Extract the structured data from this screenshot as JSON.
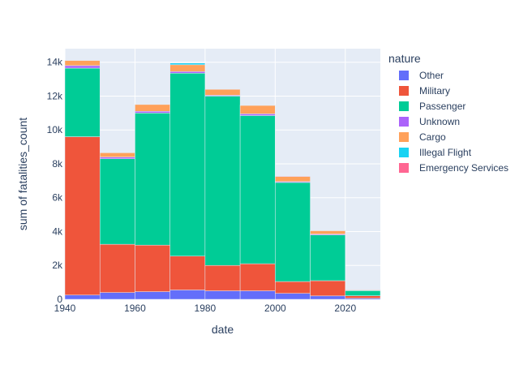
{
  "chart_data": {
    "type": "bar",
    "barmode": "stack",
    "xlabel": "date",
    "ylabel": "sum of fatalities_count",
    "xlim": [
      1940,
      2030
    ],
    "ylim": [
      0,
      14800
    ],
    "x_ticks": [
      1940,
      1960,
      1980,
      2000,
      2020
    ],
    "y_ticks": [
      0,
      2000,
      4000,
      6000,
      8000,
      10000,
      12000,
      14000
    ],
    "y_tick_labels": [
      "0",
      "2k",
      "4k",
      "6k",
      "8k",
      "10k",
      "12k",
      "14k"
    ],
    "bins": [
      [
        1940,
        1950
      ],
      [
        1950,
        1960
      ],
      [
        1960,
        1970
      ],
      [
        1970,
        1980
      ],
      [
        1980,
        1990
      ],
      [
        1990,
        2000
      ],
      [
        2000,
        2010
      ],
      [
        2010,
        2020
      ],
      [
        2020,
        2030
      ]
    ],
    "legend_title": "nature",
    "legend_position": "right",
    "grid": true,
    "series": [
      {
        "name": "Other",
        "color": "#636efa",
        "values": [
          250,
          400,
          450,
          550,
          500,
          500,
          350,
          200,
          60
        ]
      },
      {
        "name": "Military",
        "color": "#ef553b",
        "values": [
          9350,
          2850,
          2750,
          2000,
          1500,
          1600,
          700,
          900,
          150
        ]
      },
      {
        "name": "Passenger",
        "color": "#00cc96",
        "values": [
          4050,
          5050,
          7800,
          10800,
          10000,
          8750,
          5850,
          2700,
          300
        ]
      },
      {
        "name": "Unknown",
        "color": "#ab63fa",
        "values": [
          150,
          100,
          100,
          100,
          50,
          100,
          50,
          50,
          10
        ]
      },
      {
        "name": "Cargo",
        "color": "#ffa15a",
        "values": [
          300,
          250,
          400,
          400,
          350,
          500,
          300,
          200,
          30
        ]
      },
      {
        "name": "Illegal Flight",
        "color": "#19d3f3",
        "values": [
          0,
          0,
          0,
          100,
          0,
          0,
          0,
          0,
          0
        ]
      },
      {
        "name": "Emergency Services",
        "color": "#ff6692",
        "values": [
          0,
          0,
          0,
          0,
          20,
          20,
          30,
          20,
          0
        ]
      }
    ]
  }
}
